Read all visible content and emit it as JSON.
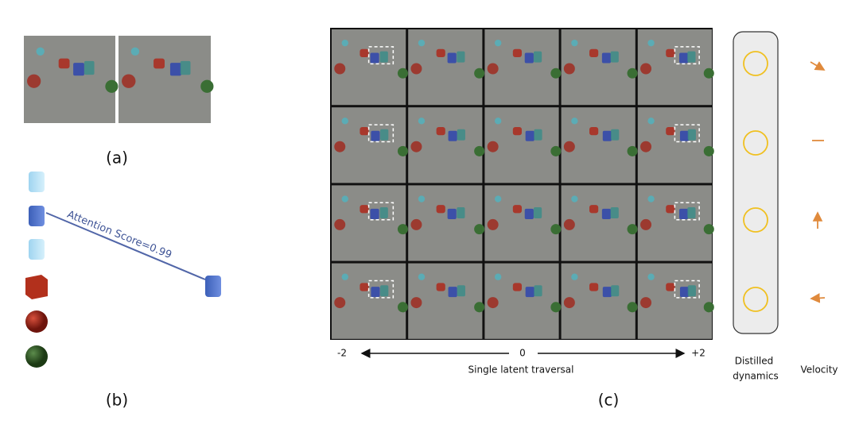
{
  "panel_a": {
    "label": "(a)"
  },
  "panel_b": {
    "label": "(b)",
    "annotation": "Attention Score=0.99"
  },
  "panel_c": {
    "label": "(c)",
    "axis": {
      "left": "-2",
      "center": "0",
      "right": "+2",
      "title": "Single latent traversal"
    },
    "dynamics_label": [
      "Distilled",
      "dynamics"
    ],
    "velocity_label": "Velocity"
  }
}
